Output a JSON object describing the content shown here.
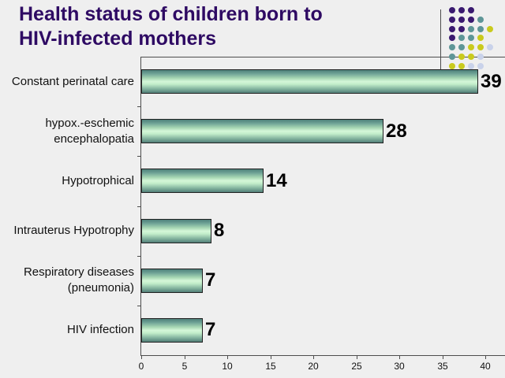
{
  "title": "Health status of children born to\nHIV-infected mothers",
  "colors": {
    "background": "#EFEFEF",
    "title_text": "#2E0A63",
    "axis_line": "#4D4D4D",
    "bar_border": "#222222",
    "bar_dark_teal": "#4E817A",
    "bar_light_green": "#D5F7D9",
    "value_label_text": "#000000",
    "category_label_text": "#111111"
  },
  "chart_data": {
    "type": "bar",
    "orientation": "horizontal",
    "title": "",
    "xlabel": "",
    "ylabel": "",
    "categories": [
      "Constant perinatal care",
      "hypox.-eschemic\nencephalopatia",
      "Hypotrophical",
      "Intrauterus Hypotrophy",
      "Respiratory diseases\n(pneumonia)",
      "HIV infection"
    ],
    "values": [
      39,
      28,
      14,
      8,
      7,
      7
    ],
    "data_labels_shown": true,
    "xlim": [
      0,
      40
    ],
    "x_ticks": [
      0,
      5,
      10,
      15,
      20,
      25,
      30,
      35,
      40
    ],
    "grid": "off",
    "legend": "none"
  },
  "decoration": {
    "dot_grid": {
      "rows": [
        "PPP..",
        "PPPT.",
        "PPTTY",
        "PTTY.",
        "TTYYL",
        "TYYL.",
        "YYLL."
      ],
      "palette": {
        "P": "#3A1A70",
        "T": "#5E9697",
        "Y": "#C9CA1D",
        "L": "#C9D2EA"
      }
    }
  }
}
